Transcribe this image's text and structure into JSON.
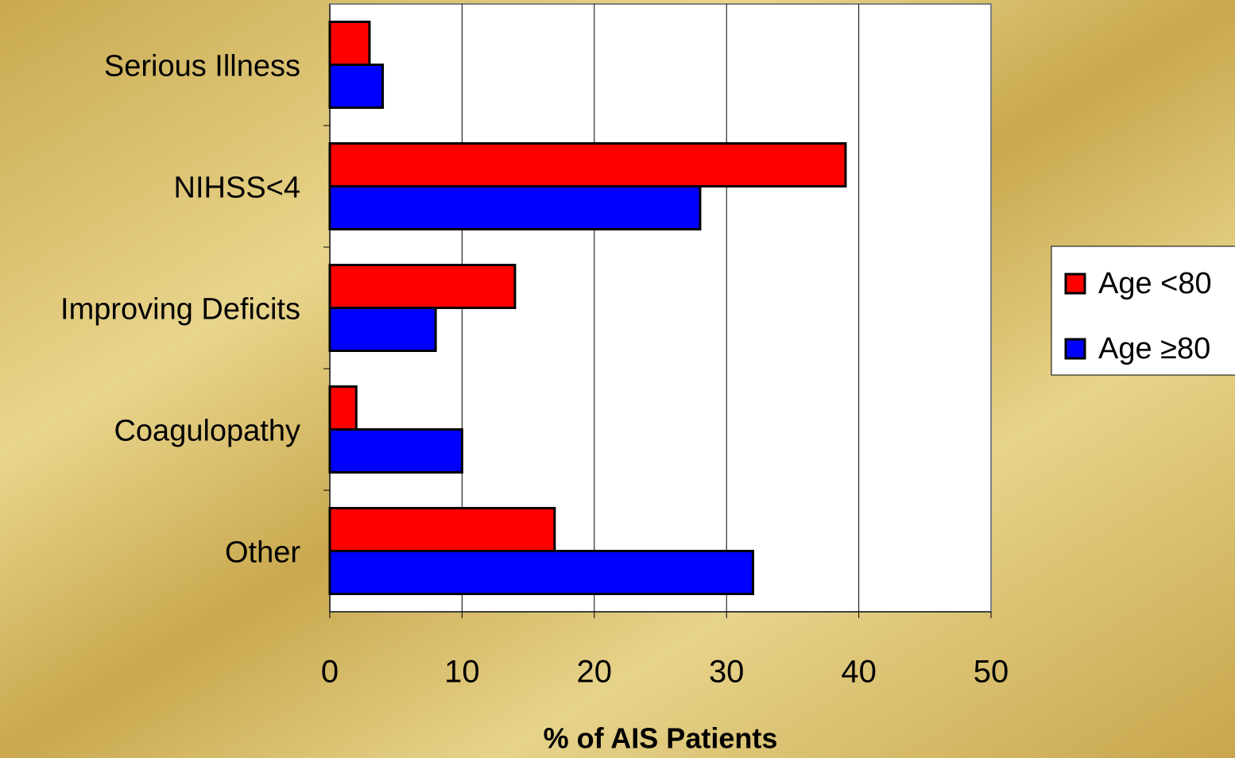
{
  "chart_data": {
    "type": "bar",
    "orientation": "horizontal",
    "categories": [
      "Serious Illness",
      "NIHSS<4",
      "Improving Deficits",
      "Coagulopathy",
      "Other"
    ],
    "series": [
      {
        "name": "Age <80",
        "color": "#ff0000",
        "values": [
          3,
          39,
          14,
          2,
          17
        ]
      },
      {
        "name": "Age ≥80",
        "color": "#0000ff",
        "values": [
          4,
          28,
          8,
          10,
          32
        ]
      }
    ],
    "xlabel": "% of AIS Patients",
    "xlim": [
      0,
      50
    ],
    "xticks": [
      0,
      10,
      20,
      30,
      40,
      50
    ],
    "grid": true,
    "legend": "right"
  }
}
